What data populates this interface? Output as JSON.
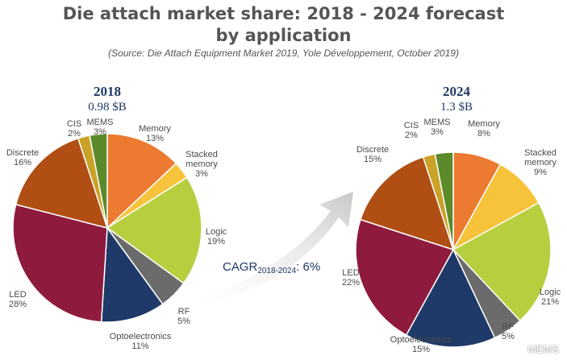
{
  "title_line1": "Die attach market share: 2018 - 2024 forecast",
  "title_line2": "by application",
  "source": "(Source: Die Attach Equipment Market 2019, Yole Développement, October 2019)",
  "cagr_prefix": "CAGR",
  "cagr_sub": "2018-2024",
  "cagr_value": ": 6%",
  "watermark": "MEMS",
  "chart_data": [
    {
      "type": "pie",
      "title": "2018",
      "subtitle": "0.98 $B",
      "slices": [
        {
          "key": "memory",
          "label": "Memory",
          "value": 13,
          "pct": "13%",
          "color": "#ec7a31"
        },
        {
          "key": "stacked",
          "label": "Stacked memory",
          "value": 3,
          "pct": "3%",
          "color": "#f7c33a"
        },
        {
          "key": "logic",
          "label": "Logic",
          "value": 19,
          "pct": "19%",
          "color": "#b7cf3f"
        },
        {
          "key": "rf",
          "label": "RF",
          "value": 5,
          "pct": "5%",
          "color": "#6b6b6b"
        },
        {
          "key": "opto",
          "label": "Optoelectronics",
          "value": 11,
          "pct": "11%",
          "color": "#1f3a68"
        },
        {
          "key": "led",
          "label": "LED",
          "value": 28,
          "pct": "28%",
          "color": "#8e1b3e"
        },
        {
          "key": "discrete",
          "label": "Discrete",
          "value": 16,
          "pct": "16%",
          "color": "#b04e14"
        },
        {
          "key": "cis",
          "label": "CIS",
          "value": 2,
          "pct": "2%",
          "color": "#c9a227"
        },
        {
          "key": "mems",
          "label": "MEMS",
          "value": 3,
          "pct": "3%",
          "color": "#5c8a2a"
        }
      ]
    },
    {
      "type": "pie",
      "title": "2024",
      "subtitle": "1.3 $B",
      "slices": [
        {
          "key": "memory",
          "label": "Memory",
          "value": 8,
          "pct": "8%",
          "color": "#ec7a31"
        },
        {
          "key": "stacked",
          "label": "Stacked memory",
          "value": 9,
          "pct": "9%",
          "color": "#f7c33a"
        },
        {
          "key": "logic",
          "label": "Logic",
          "value": 21,
          "pct": "21%",
          "color": "#b7cf3f"
        },
        {
          "key": "rf",
          "label": "RF",
          "value": 5,
          "pct": "5%",
          "color": "#6b6b6b"
        },
        {
          "key": "opto",
          "label": "Optoelectronics",
          "value": 15,
          "pct": "15%",
          "color": "#1f3a68"
        },
        {
          "key": "led",
          "label": "LED",
          "value": 22,
          "pct": "22%",
          "color": "#8e1b3e"
        },
        {
          "key": "discrete",
          "label": "Discrete",
          "value": 15,
          "pct": "15%",
          "color": "#b04e14"
        },
        {
          "key": "cis",
          "label": "CIS",
          "value": 2,
          "pct": "2%",
          "color": "#c9a227"
        },
        {
          "key": "mems",
          "label": "MEMS",
          "value": 3,
          "pct": "3%",
          "color": "#5c8a2a"
        }
      ]
    }
  ]
}
